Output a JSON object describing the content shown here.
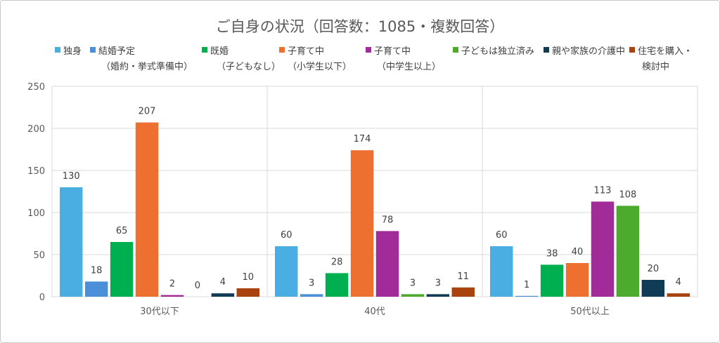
{
  "chart_data": {
    "type": "bar",
    "title": "ご自身の状況（回答数：1085・複数回答）",
    "categories": [
      "30代以下",
      "40代",
      "50代以上"
    ],
    "ylim": [
      0,
      250
    ],
    "yticks": [
      0,
      50,
      100,
      150,
      200,
      250
    ],
    "grid": true,
    "legend_position": "top",
    "series": [
      {
        "name": "独身",
        "name_sub": "",
        "color": "#4aaee2",
        "values": [
          130,
          60,
          60
        ]
      },
      {
        "name": "結婚予定",
        "name_sub": "（婚約・挙式準備中）",
        "color": "#4a8fd8",
        "values": [
          18,
          3,
          1
        ]
      },
      {
        "name": "既婚",
        "name_sub": "（子どもなし）",
        "color": "#00b050",
        "values": [
          65,
          28,
          38
        ]
      },
      {
        "name": "子育て中",
        "name_sub": "（小学生以下）",
        "color": "#ed7030",
        "values": [
          207,
          174,
          40
        ]
      },
      {
        "name": "子育て中",
        "name_sub": "（中学生以上）",
        "color": "#a12b99",
        "values": [
          2,
          78,
          113
        ]
      },
      {
        "name": "子どもは独立済み",
        "name_sub": "",
        "color": "#4caa2c",
        "values": [
          0,
          3,
          108
        ]
      },
      {
        "name": "親や家族の介護中",
        "name_sub": "",
        "color": "#0f3b55",
        "values": [
          4,
          3,
          20
        ]
      },
      {
        "name": "住宅を購入・",
        "name_sub": "検討中",
        "color": "#a8420f",
        "values": [
          10,
          11,
          4
        ]
      }
    ]
  }
}
